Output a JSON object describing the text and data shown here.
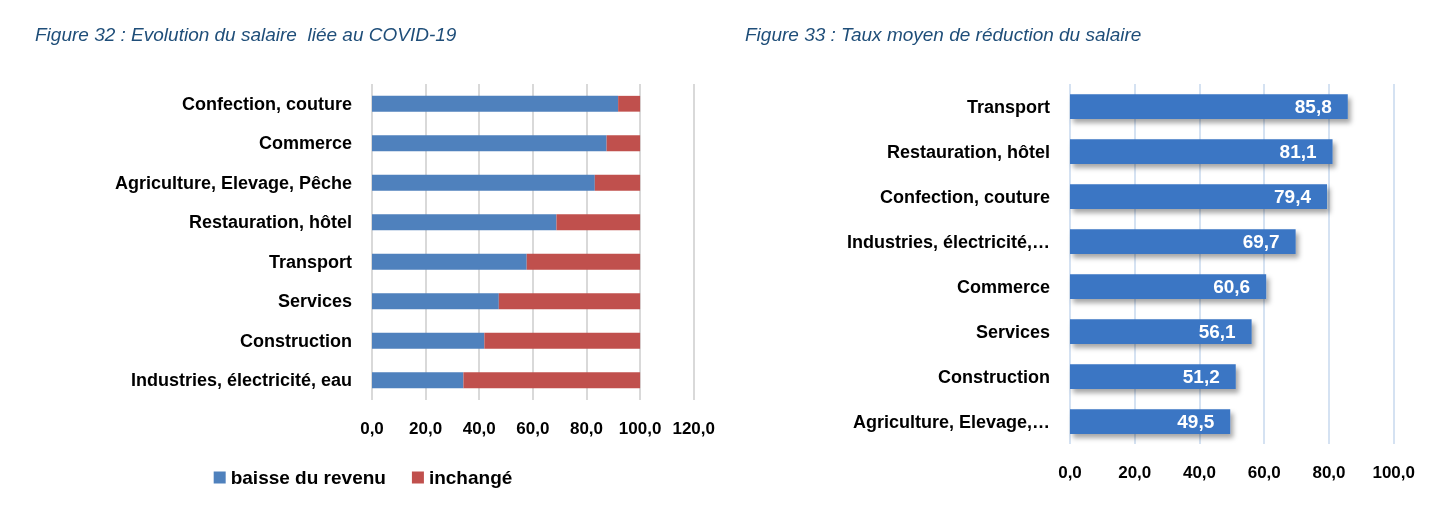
{
  "chart_data": [
    {
      "type": "bar",
      "title": "Figure 32 : Evolution du salaire  liée au COVID-19",
      "orientation": "horizontal",
      "stacked": true,
      "categories": [
        "Confection, couture",
        "Commerce",
        "Agriculture, Elevage, Pêche",
        "Restauration, hôtel",
        "Transport",
        "Services",
        "Construction",
        "Industries, électricité, eau"
      ],
      "series": [
        {
          "name": "baisse du revenu",
          "color": "#4f81bd",
          "values": [
            91.8,
            87.5,
            83.1,
            68.8,
            57.7,
            47.3,
            41.9,
            34.1
          ]
        },
        {
          "name": "inchangé",
          "color": "#c0504d",
          "values": [
            8.2,
            12.5,
            16.9,
            31.2,
            42.3,
            52.7,
            58.1,
            65.9
          ]
        }
      ],
      "xlim": [
        0,
        120
      ],
      "xticks": [
        {
          "value": 0,
          "label": "0,0"
        },
        {
          "value": 20,
          "label": "20,0"
        },
        {
          "value": 40,
          "label": "40,0"
        },
        {
          "value": 60,
          "label": "60,0"
        },
        {
          "value": 80,
          "label": "80,0"
        },
        {
          "value": 100,
          "label": "100,0"
        },
        {
          "value": 120,
          "label": "120,0"
        }
      ],
      "grid": "x",
      "legend": "bottom"
    },
    {
      "type": "bar",
      "title": "Figure 33 : Taux moyen de réduction du salaire",
      "orientation": "horizontal",
      "categories": [
        "Transport",
        "Restauration, hôtel",
        "Confection, couture",
        "Industries, électricité,…",
        "Commerce",
        "Services",
        "Construction",
        "Agriculture, Elevage,…"
      ],
      "values": [
        85.8,
        81.1,
        79.4,
        69.7,
        60.6,
        56.1,
        51.2,
        49.5
      ],
      "color": "#3a76c4",
      "value_labels": [
        "85,8",
        "81,1",
        "79,4",
        "69,7",
        "60,6",
        "56,1",
        "51,2",
        "49,5"
      ],
      "xlim": [
        0,
        100
      ],
      "xticks": [
        {
          "value": 0,
          "label": "0,0"
        },
        {
          "value": 20,
          "label": "20,0"
        },
        {
          "value": 40,
          "label": "40,0"
        },
        {
          "value": 60,
          "label": "60,0"
        },
        {
          "value": 80,
          "label": "80,0"
        },
        {
          "value": 100,
          "label": "100,0"
        }
      ],
      "grid": "x",
      "legend": false
    }
  ]
}
